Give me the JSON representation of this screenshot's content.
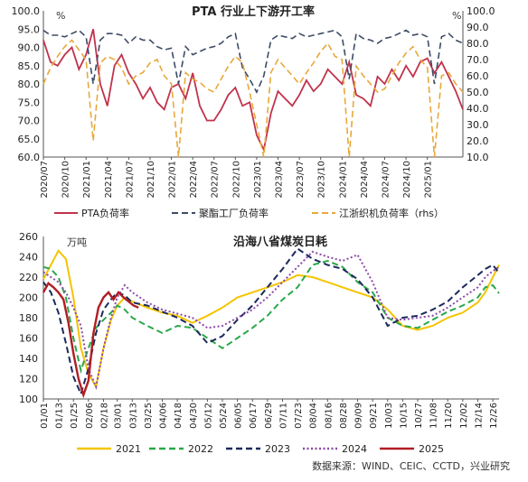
{
  "source": "数据来源：WIND、CEIC、CCTD，兴业研究",
  "chart_data": [
    {
      "type": "line",
      "title": "PTA 行业上下游开工率",
      "y_unit_left": "%",
      "y_unit_right": "%",
      "ylim_left": [
        60,
        100
      ],
      "ylim_right": [
        10,
        100
      ],
      "y_ticks_left": [
        "60.0",
        "65.0",
        "70.0",
        "75.0",
        "80.0",
        "85.0",
        "90.0",
        "95.0",
        "100.0"
      ],
      "y_ticks_right": [
        "10.0",
        "20.0",
        "30.0",
        "40.0",
        "50.0",
        "60.0",
        "70.0",
        "80.0",
        "90.0",
        "100.0"
      ],
      "x_ticks": [
        "2020/07",
        "2020/10",
        "2021/01",
        "2021/04",
        "2021/07",
        "2021/10",
        "2022/01",
        "2022/04",
        "2022/07",
        "2022/10",
        "2023/01",
        "2023/04",
        "2023/07",
        "2023/10",
        "2024/01",
        "2024/04",
        "2024/07",
        "2024/10",
        "2025/01"
      ],
      "x_range": [
        "2020/07",
        "2025/06"
      ],
      "series": [
        {
          "name": "PTA负荷率",
          "axis": "left",
          "color": "#c0334d",
          "dash": "solid",
          "x": [
            "2020/07",
            "2020/08",
            "2020/09",
            "2020/10",
            "2020/11",
            "2020/12",
            "2021/01",
            "2021/02",
            "2021/03",
            "2021/04",
            "2021/05",
            "2021/06",
            "2021/07",
            "2021/08",
            "2021/09",
            "2021/10",
            "2021/11",
            "2021/12",
            "2022/01",
            "2022/02",
            "2022/03",
            "2022/04",
            "2022/05",
            "2022/06",
            "2022/07",
            "2022/08",
            "2022/09",
            "2022/10",
            "2022/11",
            "2022/12",
            "2023/01",
            "2023/02",
            "2023/03",
            "2023/04",
            "2023/05",
            "2023/06",
            "2023/07",
            "2023/08",
            "2023/09",
            "2023/10",
            "2023/11",
            "2023/12",
            "2024/01",
            "2024/02",
            "2024/03",
            "2024/04",
            "2024/05",
            "2024/06",
            "2024/07",
            "2024/08",
            "2024/09",
            "2024/10",
            "2024/11",
            "2024/12",
            "2025/01",
            "2025/02",
            "2025/03",
            "2025/04",
            "2025/05",
            "2025/06"
          ],
          "values": [
            92,
            86,
            85,
            88,
            90,
            84,
            88,
            95,
            80,
            74,
            85,
            88,
            83,
            80,
            76,
            79,
            75,
            73,
            79,
            80,
            76,
            83,
            74,
            70,
            70,
            73,
            77,
            79,
            74,
            75,
            66,
            62,
            72,
            78,
            76,
            74,
            77,
            81,
            78,
            80,
            84,
            82,
            80,
            86,
            77,
            76,
            74,
            82,
            80,
            84,
            81,
            85,
            82,
            86,
            87,
            83,
            86,
            82,
            78,
            73
          ]
        },
        {
          "name": "聚酯工厂负荷率",
          "axis": "right",
          "color": "#3d4b66",
          "dash": "dashed",
          "x": [
            "2020/07",
            "2020/08",
            "2020/09",
            "2020/10",
            "2020/11",
            "2020/12",
            "2021/01",
            "2021/02",
            "2021/03",
            "2021/04",
            "2021/05",
            "2021/06",
            "2021/07",
            "2021/08",
            "2021/09",
            "2021/10",
            "2021/11",
            "2021/12",
            "2022/01",
            "2022/02",
            "2022/03",
            "2022/04",
            "2022/05",
            "2022/06",
            "2022/07",
            "2022/08",
            "2022/09",
            "2022/10",
            "2022/11",
            "2022/12",
            "2023/01",
            "2023/02",
            "2023/03",
            "2023/04",
            "2023/05",
            "2023/06",
            "2023/07",
            "2023/08",
            "2023/09",
            "2023/10",
            "2023/11",
            "2023/12",
            "2024/01",
            "2024/02",
            "2024/03",
            "2024/04",
            "2024/05",
            "2024/06",
            "2024/07",
            "2024/08",
            "2024/09",
            "2024/10",
            "2024/11",
            "2024/12",
            "2025/01",
            "2025/02",
            "2025/03",
            "2025/04",
            "2025/05",
            "2025/06"
          ],
          "values": [
            88,
            85,
            85,
            84,
            86,
            88,
            84,
            55,
            82,
            86,
            86,
            85,
            80,
            84,
            82,
            82,
            78,
            76,
            77,
            55,
            78,
            73,
            75,
            77,
            78,
            80,
            84,
            86,
            65,
            58,
            50,
            60,
            82,
            85,
            84,
            83,
            86,
            84,
            85,
            86,
            87,
            88,
            84,
            58,
            86,
            83,
            82,
            80,
            83,
            84,
            86,
            88,
            85,
            86,
            84,
            55,
            84,
            86,
            82,
            80
          ]
        },
        {
          "name": "江浙织机负荷率（rhs）",
          "axis": "right",
          "color": "#e8a83a",
          "dash": "dashed",
          "x": [
            "2020/07",
            "2020/08",
            "2020/09",
            "2020/10",
            "2020/11",
            "2020/12",
            "2021/01",
            "2021/02",
            "2021/03",
            "2021/04",
            "2021/05",
            "2021/06",
            "2021/07",
            "2021/08",
            "2021/09",
            "2021/10",
            "2021/11",
            "2021/12",
            "2022/01",
            "2022/02",
            "2022/03",
            "2022/04",
            "2022/05",
            "2022/06",
            "2022/07",
            "2022/08",
            "2022/09",
            "2022/10",
            "2022/11",
            "2022/12",
            "2023/01",
            "2023/02",
            "2023/03",
            "2023/04",
            "2023/05",
            "2023/06",
            "2023/07",
            "2023/08",
            "2023/09",
            "2023/10",
            "2023/11",
            "2023/12",
            "2024/01",
            "2024/02",
            "2024/03",
            "2024/04",
            "2024/05",
            "2024/06",
            "2024/07",
            "2024/08",
            "2024/09",
            "2024/10",
            "2024/11",
            "2024/12",
            "2025/01",
            "2025/02",
            "2025/03",
            "2025/04",
            "2025/05",
            "2025/06"
          ],
          "values": [
            55,
            65,
            72,
            78,
            82,
            76,
            70,
            20,
            68,
            72,
            70,
            65,
            55,
            60,
            62,
            68,
            70,
            60,
            55,
            10,
            62,
            58,
            56,
            52,
            50,
            58,
            66,
            72,
            68,
            50,
            30,
            10,
            62,
            70,
            65,
            60,
            55,
            62,
            68,
            75,
            80,
            72,
            70,
            10,
            66,
            60,
            55,
            50,
            52,
            60,
            68,
            74,
            78,
            70,
            65,
            10,
            60,
            62,
            55,
            50
          ]
        }
      ]
    },
    {
      "type": "line",
      "title": "沿海八省煤炭日耗",
      "y_unit": "万吨",
      "ylim": [
        100,
        260
      ],
      "y_ticks": [
        "100",
        "120",
        "140",
        "160",
        "180",
        "200",
        "220",
        "240",
        "260"
      ],
      "x_ticks": [
        "01/01",
        "01/13",
        "01/25",
        "02/06",
        "02/18",
        "03/01",
        "03/13",
        "03/25",
        "04/06",
        "04/18",
        "04/30",
        "05/12",
        "05/24",
        "06/05",
        "06/17",
        "06/29",
        "07/11",
        "07/23",
        "08/04",
        "08/16",
        "08/28",
        "09/09",
        "09/21",
        "10/03",
        "10/15",
        "10/27",
        "11/08",
        "11/20",
        "12/02",
        "12/14",
        "12/26"
      ],
      "series": [
        {
          "name": "2021",
          "color": "#f5c400",
          "dash": "solid",
          "x": [
            "01/01",
            "01/07",
            "01/13",
            "01/19",
            "01/25",
            "01/31",
            "02/06",
            "02/12",
            "02/18",
            "02/24",
            "03/01",
            "03/07",
            "03/13",
            "03/25",
            "04/06",
            "04/18",
            "04/30",
            "05/12",
            "05/24",
            "06/05",
            "06/17",
            "06/29",
            "07/11",
            "07/23",
            "08/04",
            "08/16",
            "08/28",
            "09/09",
            "09/21",
            "10/03",
            "10/15",
            "10/27",
            "11/08",
            "11/20",
            "12/02",
            "12/14",
            "12/20",
            "12/26",
            "12/31"
          ],
          "values": [
            218,
            232,
            246,
            238,
            200,
            150,
            125,
            112,
            150,
            178,
            192,
            200,
            196,
            190,
            185,
            182,
            175,
            182,
            190,
            200,
            205,
            210,
            215,
            222,
            220,
            215,
            210,
            205,
            200,
            188,
            172,
            168,
            172,
            180,
            185,
            195,
            205,
            220,
            232
          ]
        },
        {
          "name": "2022",
          "color": "#2aa84a",
          "dash": "dashed",
          "x": [
            "01/01",
            "01/07",
            "01/13",
            "01/19",
            "01/25",
            "01/31",
            "02/06",
            "02/12",
            "02/18",
            "02/24",
            "03/01",
            "03/07",
            "03/13",
            "03/25",
            "04/06",
            "04/18",
            "04/30",
            "05/12",
            "05/24",
            "06/05",
            "06/17",
            "06/29",
            "07/11",
            "07/23",
            "08/04",
            "08/16",
            "08/28",
            "09/09",
            "09/21",
            "10/03",
            "10/15",
            "10/27",
            "11/08",
            "11/20",
            "12/02",
            "12/14",
            "12/20",
            "12/26",
            "12/31"
          ],
          "values": [
            230,
            228,
            220,
            200,
            160,
            128,
            150,
            170,
            178,
            185,
            192,
            188,
            180,
            172,
            165,
            172,
            170,
            160,
            150,
            160,
            170,
            182,
            198,
            210,
            232,
            236,
            230,
            215,
            205,
            180,
            172,
            170,
            178,
            186,
            192,
            200,
            210,
            212,
            204
          ]
        },
        {
          "name": "2023",
          "color": "#1c2a5c",
          "dash": "dashed",
          "x": [
            "01/01",
            "01/07",
            "01/13",
            "01/19",
            "01/25",
            "01/31",
            "02/06",
            "02/12",
            "02/18",
            "02/24",
            "03/01",
            "03/07",
            "03/13",
            "03/25",
            "04/06",
            "04/18",
            "04/30",
            "05/12",
            "05/24",
            "06/05",
            "06/17",
            "06/29",
            "07/11",
            "07/23",
            "08/04",
            "08/16",
            "08/28",
            "09/09",
            "09/21",
            "10/03",
            "10/15",
            "10/27",
            "11/08",
            "11/20",
            "12/02",
            "12/14",
            "12/20",
            "12/26",
            "12/31"
          ],
          "values": [
            215,
            205,
            185,
            155,
            122,
            105,
            130,
            165,
            188,
            198,
            205,
            202,
            195,
            192,
            186,
            180,
            172,
            155,
            162,
            178,
            192,
            210,
            228,
            248,
            238,
            232,
            228,
            218,
            200,
            172,
            180,
            182,
            188,
            196,
            210,
            222,
            228,
            232,
            224
          ]
        },
        {
          "name": "2024",
          "color": "#8b4aa8",
          "dash": "dotted",
          "x": [
            "01/01",
            "01/07",
            "01/13",
            "01/19",
            "01/25",
            "01/31",
            "02/06",
            "02/12",
            "02/18",
            "02/24",
            "03/01",
            "03/07",
            "03/13",
            "03/25",
            "04/06",
            "04/18",
            "04/30",
            "05/12",
            "05/24",
            "06/05",
            "06/17",
            "06/29",
            "07/11",
            "07/23",
            "08/04",
            "08/16",
            "08/28",
            "09/09",
            "09/21",
            "10/03",
            "10/15",
            "10/27",
            "11/08",
            "11/20",
            "12/02",
            "12/14",
            "12/20",
            "12/26",
            "12/31"
          ],
          "values": [
            225,
            220,
            215,
            205,
            190,
            172,
            130,
            112,
            150,
            180,
            200,
            212,
            205,
            195,
            188,
            184,
            180,
            170,
            172,
            180,
            188,
            200,
            215,
            230,
            245,
            240,
            236,
            242,
            215,
            180,
            178,
            180,
            182,
            190,
            200,
            210,
            220,
            226,
            230
          ]
        },
        {
          "name": "2025",
          "color": "#b01e24",
          "dash": "solid",
          "x": [
            "01/01",
            "01/05",
            "01/09",
            "01/13",
            "01/17",
            "01/21",
            "01/25",
            "01/29",
            "02/02",
            "02/06",
            "02/10",
            "02/14",
            "02/18",
            "02/22",
            "02/26",
            "03/02",
            "03/06",
            "03/10",
            "03/14",
            "03/18"
          ],
          "values": [
            205,
            214,
            210,
            205,
            198,
            175,
            145,
            120,
            104,
            118,
            165,
            190,
            200,
            205,
            198,
            205,
            200,
            196,
            192,
            190
          ]
        }
      ]
    }
  ]
}
